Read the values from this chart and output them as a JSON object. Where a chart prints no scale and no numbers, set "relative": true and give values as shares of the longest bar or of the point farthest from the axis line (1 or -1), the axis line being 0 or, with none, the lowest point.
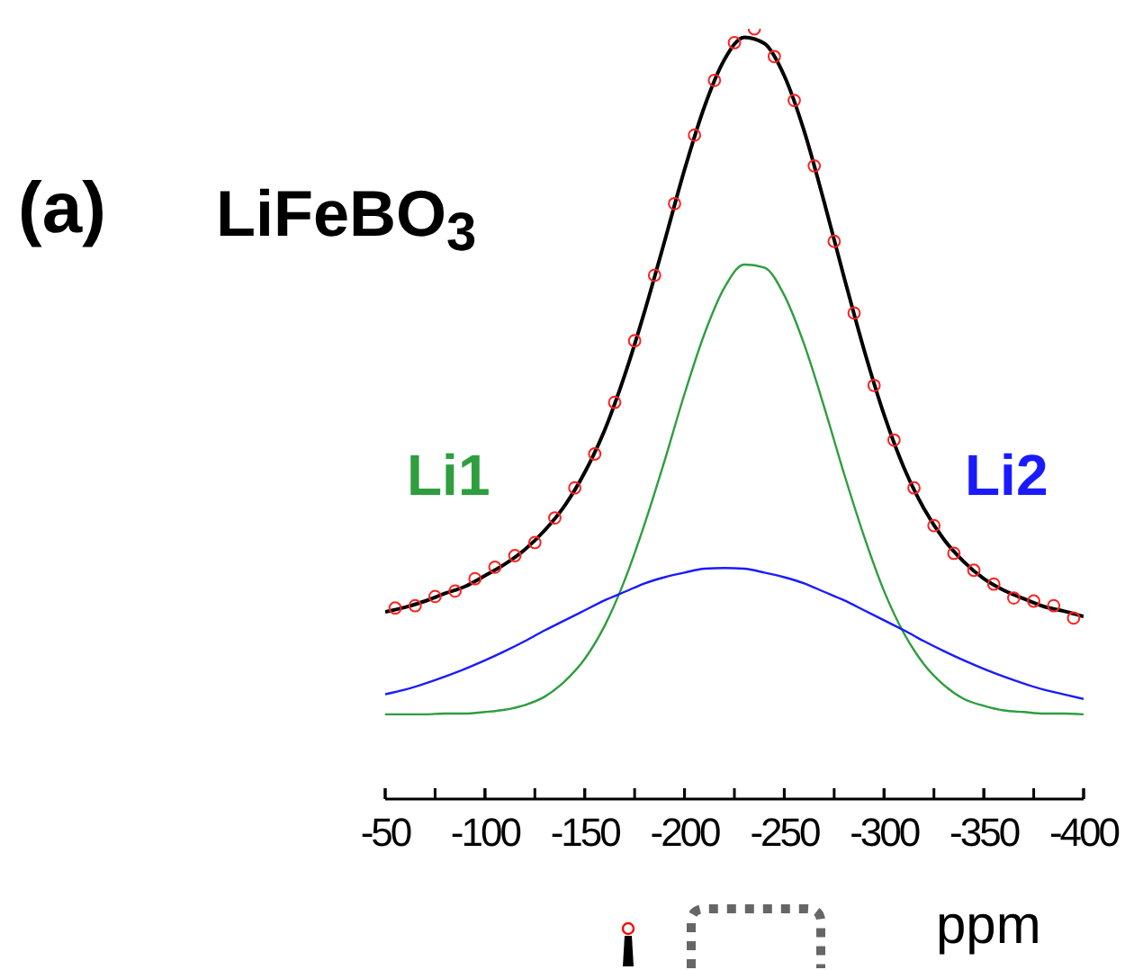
{
  "chart_data": {
    "type": "line",
    "title": "(a)",
    "subtitle": "LiFeBO$_{3}$",
    "xlabel": "ppm",
    "relative": true,
    "xlim": [
      -50,
      -400
    ],
    "xticks": [
      -50,
      {
        "value": -75,
        "label": null
      },
      -100,
      {
        "value": -125,
        "label": null
      },
      -150,
      {
        "value": -175,
        "label": null
      },
      -200,
      {
        "value": -225,
        "label": null
      },
      -250,
      {
        "value": -275,
        "label": null
      },
      -300,
      {
        "value": -325,
        "label": null
      },
      -350,
      {
        "value": -375,
        "label": null
      },
      -400
    ],
    "x": [
      -50,
      -60,
      -70,
      -80,
      -90,
      -100,
      -110,
      -120,
      -130,
      -140,
      -150,
      -160,
      -170,
      -180,
      -190,
      -200,
      -210,
      -220,
      -230,
      -240,
      -250,
      -260,
      -270,
      -280,
      -290,
      -300,
      -310,
      -320,
      -330,
      -340,
      -350,
      -360,
      -370,
      -380,
      -390,
      -400
    ],
    "marker": "none",
    "line_style": "solid",
    "series": [
      {
        "type": "scatter",
        "marker": "circle",
        "color": "#ff2020",
        "x": [
          -55,
          -65,
          -75,
          -85,
          -95,
          -105,
          -115,
          -125,
          -135,
          -145,
          -155,
          -165,
          -175,
          -185,
          -195,
          -205,
          -215,
          -225,
          -235,
          -245,
          -255,
          -265,
          -275,
          -285,
          -295,
          -305,
          -315,
          -325,
          -335,
          -345,
          -355,
          -365,
          -375,
          -385,
          -395
        ],
        "values": [
          0.248,
          0.251,
          0.263,
          0.27,
          0.286,
          0.301,
          0.316,
          0.333,
          0.365,
          0.404,
          0.448,
          0.515,
          0.595,
          0.68,
          0.773,
          0.862,
          0.933,
          0.982,
          1.0,
          0.964,
          0.907,
          0.822,
          0.724,
          0.631,
          0.537,
          0.466,
          0.404,
          0.355,
          0.319,
          0.297,
          0.279,
          0.261,
          0.257,
          0.251,
          0.235
        ]
      },
      {
        "color": "#000000",
        "values": [
          0.243,
          0.249,
          0.257,
          0.267,
          0.276,
          0.29,
          0.305,
          0.324,
          0.349,
          0.381,
          0.424,
          0.479,
          0.55,
          0.633,
          0.724,
          0.817,
          0.899,
          0.96,
          0.989,
          0.981,
          0.939,
          0.867,
          0.775,
          0.677,
          0.583,
          0.499,
          0.43,
          0.377,
          0.337,
          0.308,
          0.286,
          0.271,
          0.26,
          0.25,
          0.244,
          0.237
        ]
      },
      {
        "name": "Li1",
        "color": "#2e9e3e",
        "values": [
          0.11,
          0.11,
          0.11,
          0.111,
          0.111,
          0.113,
          0.116,
          0.122,
          0.133,
          0.153,
          0.182,
          0.225,
          0.284,
          0.357,
          0.439,
          0.526,
          0.604,
          0.664,
          0.694,
          0.69,
          0.654,
          0.59,
          0.509,
          0.422,
          0.341,
          0.27,
          0.215,
          0.175,
          0.148,
          0.13,
          0.121,
          0.115,
          0.113,
          0.111,
          0.111,
          0.11
        ]
      },
      {
        "name": "Li2",
        "color": "#1a1aff",
        "values": [
          0.136,
          0.142,
          0.15,
          0.159,
          0.169,
          0.18,
          0.192,
          0.205,
          0.219,
          0.232,
          0.245,
          0.258,
          0.269,
          0.28,
          0.288,
          0.294,
          0.299,
          0.3,
          0.299,
          0.294,
          0.288,
          0.28,
          0.269,
          0.258,
          0.245,
          0.232,
          0.219,
          0.205,
          0.192,
          0.18,
          0.169,
          0.159,
          0.15,
          0.142,
          0.136,
          0.13
        ]
      }
    ]
  }
}
